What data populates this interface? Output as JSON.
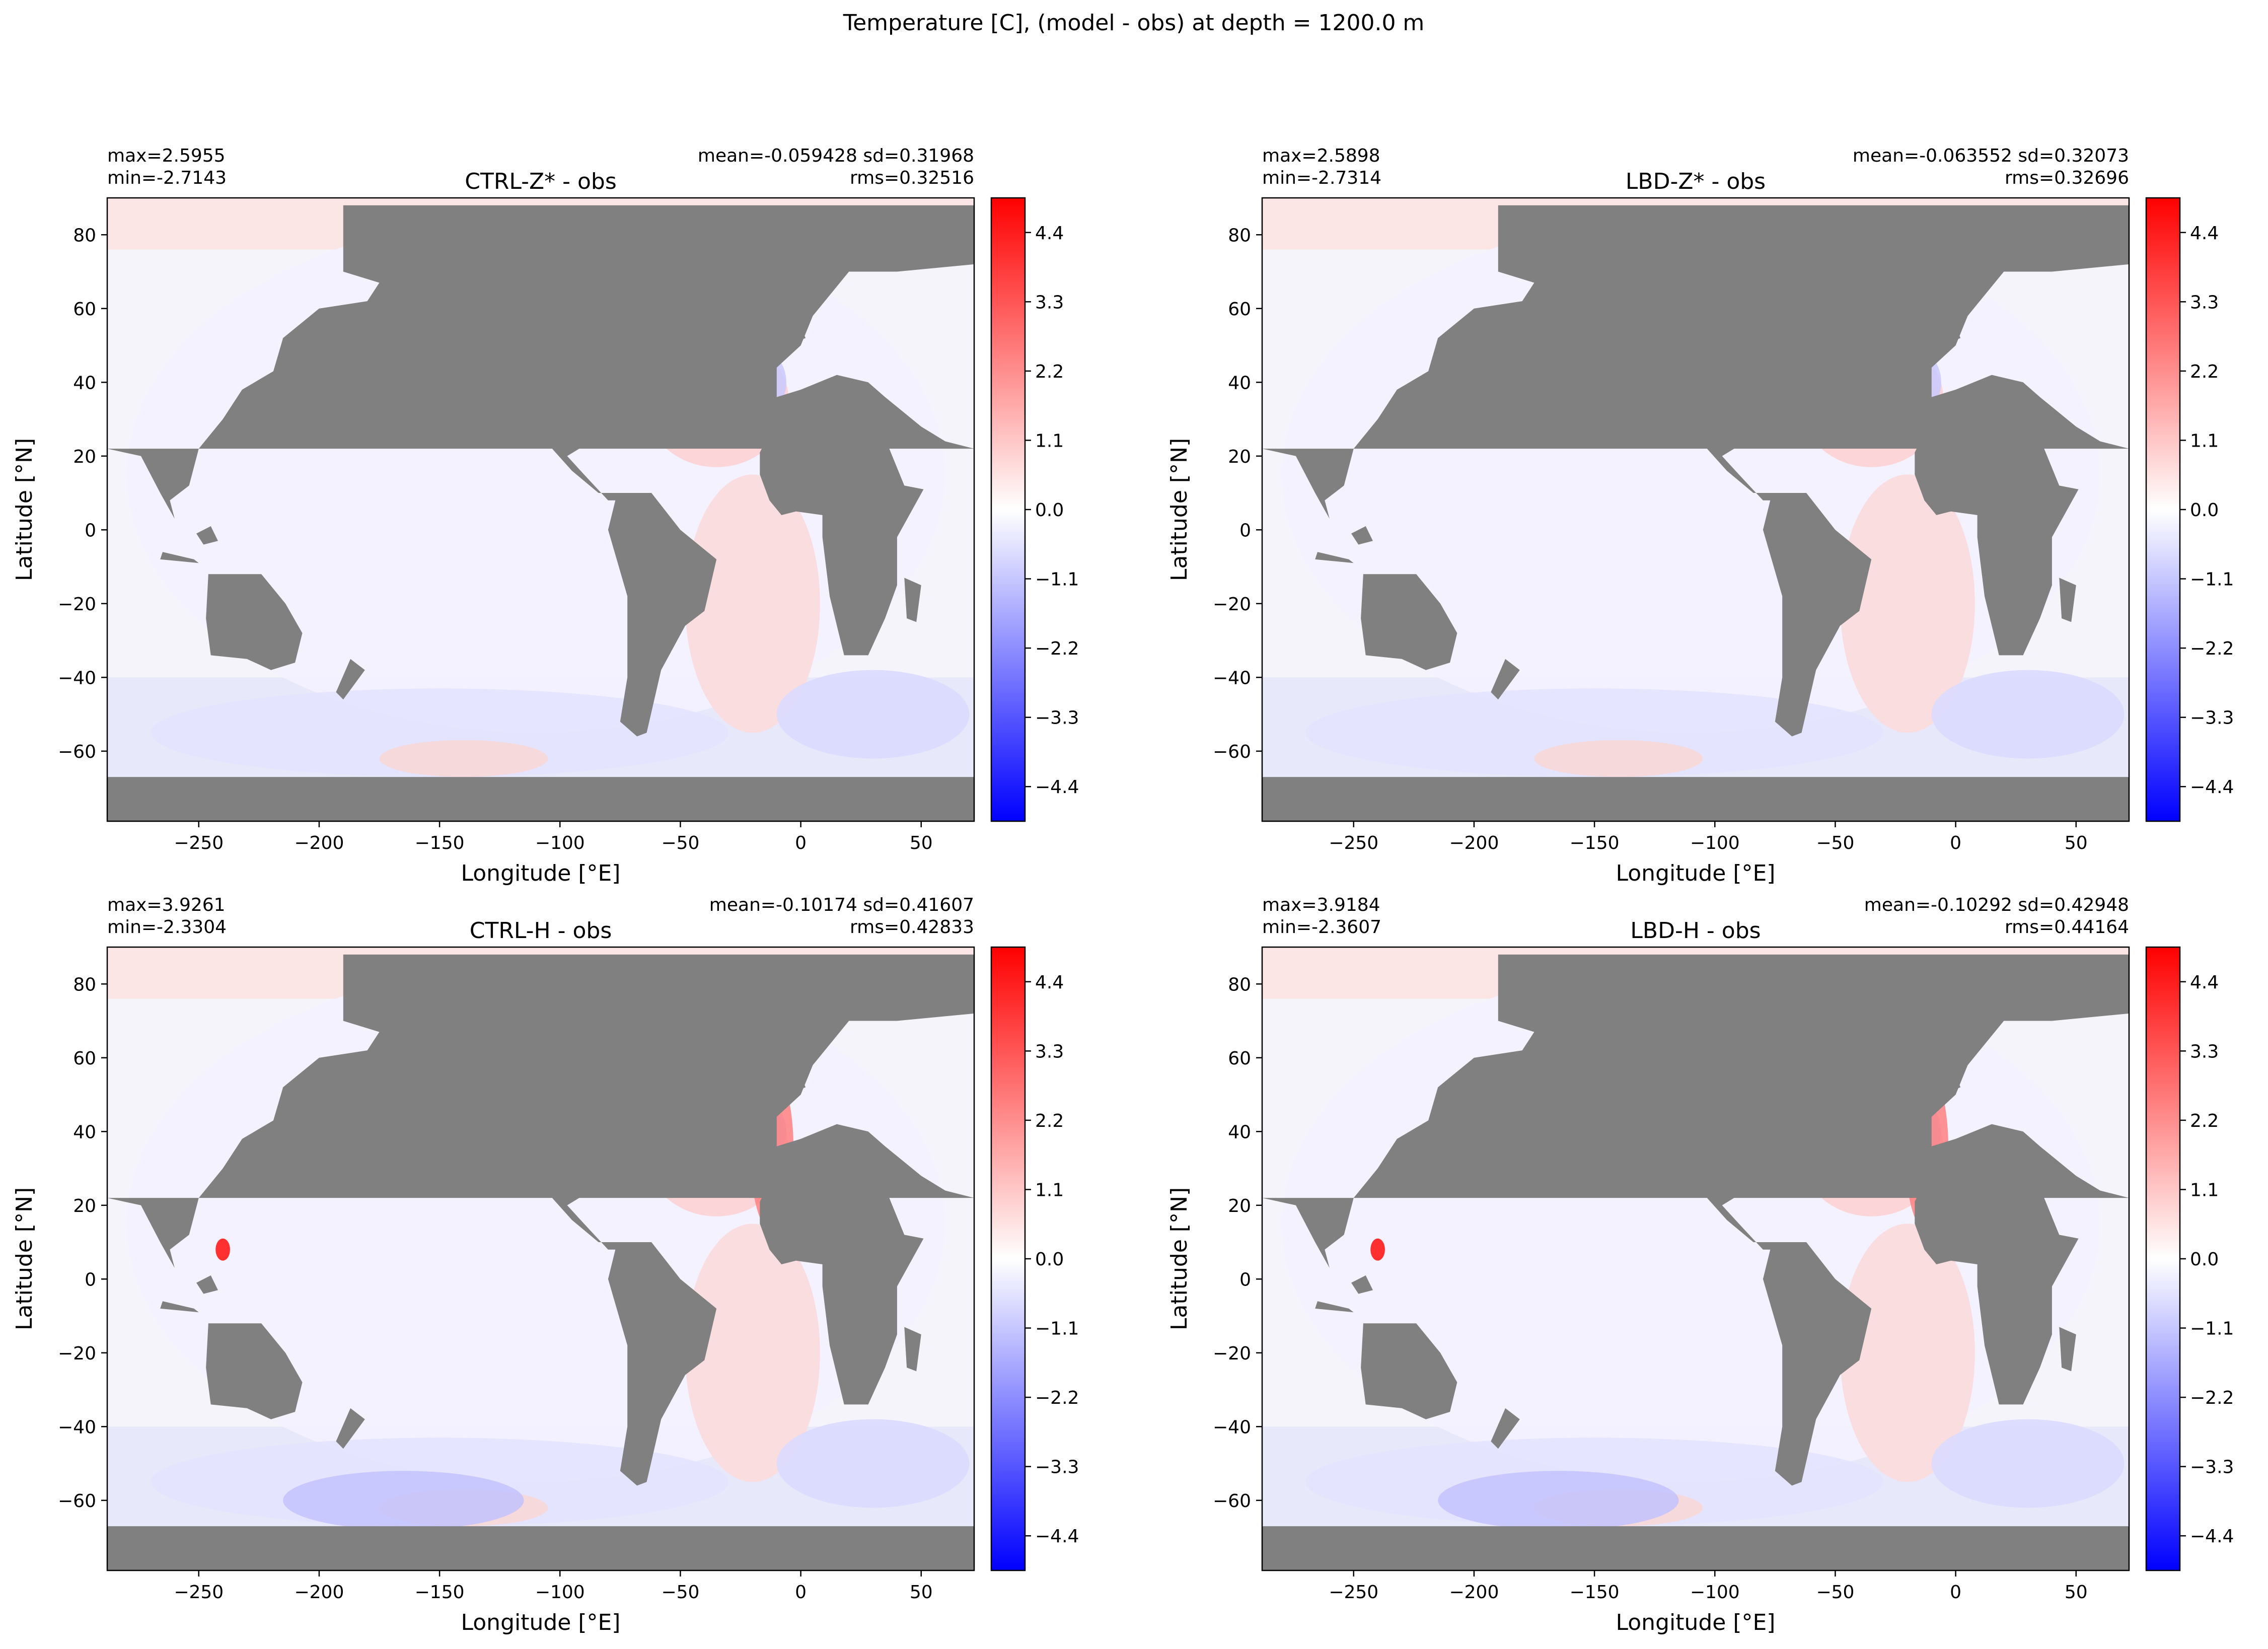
{
  "figure": {
    "suptitle": "Temperature [C], (model - obs) at depth = 1200.0 m",
    "land_color": "#808080",
    "cmap": {
      "neg": "#0000ff",
      "mid": "#ffffff",
      "pos": "#ff0000"
    }
  },
  "chart_data": [
    {
      "type": "heatmap",
      "title": "CTRL-Z* - obs",
      "stats_left": [
        "max=2.5955",
        "min=-2.7143"
      ],
      "stats_right": [
        "mean=-0.059428 sd=0.31968",
        "rms=0.32516"
      ],
      "xlabel": "Longitude [°E]",
      "ylabel": "Latitude [°N]",
      "xlim": [
        -288,
        72
      ],
      "ylim": [
        -79,
        90
      ],
      "xticks": [
        -250,
        -200,
        -150,
        -100,
        -50,
        0,
        50
      ],
      "xtick_labels": [
        "−250",
        "−200",
        "−150",
        "−100",
        "−50",
        "0",
        "50"
      ],
      "yticks": [
        80,
        60,
        40,
        20,
        0,
        -20,
        -40,
        -60
      ],
      "ytick_labels": [
        "80",
        "60",
        "40",
        "20",
        "0",
        "−20",
        "−40",
        "−60"
      ],
      "colorbar": {
        "range": [
          -4.95,
          4.95
        ],
        "ticks": [
          4.4,
          3.3,
          2.2,
          1.1,
          0.0,
          -1.1,
          -2.2,
          -3.3,
          -4.4
        ],
        "tick_labels": [
          "4.4",
          "3.3",
          "2.2",
          "1.1",
          "0.0",
          "−1.1",
          "−2.2",
          "−3.3",
          "−4.4"
        ]
      }
    },
    {
      "type": "heatmap",
      "title": "LBD-Z* - obs",
      "stats_left": [
        "max=2.5898",
        "min=-2.7314"
      ],
      "stats_right": [
        "mean=-0.063552 sd=0.32073",
        "rms=0.32696"
      ],
      "xlabel": "Longitude [°E]",
      "ylabel": "Latitude [°N]",
      "xlim": [
        -288,
        72
      ],
      "ylim": [
        -79,
        90
      ],
      "xticks": [
        -250,
        -200,
        -150,
        -100,
        -50,
        0,
        50
      ],
      "xtick_labels": [
        "−250",
        "−200",
        "−150",
        "−100",
        "−50",
        "0",
        "50"
      ],
      "yticks": [
        80,
        60,
        40,
        20,
        0,
        -20,
        -40,
        -60
      ],
      "ytick_labels": [
        "80",
        "60",
        "40",
        "20",
        "0",
        "−20",
        "−40",
        "−60"
      ],
      "colorbar": {
        "range": [
          -4.95,
          4.95
        ],
        "ticks": [
          4.4,
          3.3,
          2.2,
          1.1,
          0.0,
          -1.1,
          -2.2,
          -3.3,
          -4.4
        ],
        "tick_labels": [
          "4.4",
          "3.3",
          "2.2",
          "1.1",
          "0.0",
          "−1.1",
          "−2.2",
          "−3.3",
          "−4.4"
        ]
      }
    },
    {
      "type": "heatmap",
      "title": "CTRL-H - obs",
      "stats_left": [
        "max=3.9261",
        "min=-2.3304"
      ],
      "stats_right": [
        "mean=-0.10174 sd=0.41607",
        "rms=0.42833"
      ],
      "xlabel": "Longitude [°E]",
      "ylabel": "Latitude [°N]",
      "xlim": [
        -288,
        72
      ],
      "ylim": [
        -79,
        90
      ],
      "xticks": [
        -250,
        -200,
        -150,
        -100,
        -50,
        0,
        50
      ],
      "xtick_labels": [
        "−250",
        "−200",
        "−150",
        "−100",
        "−50",
        "0",
        "50"
      ],
      "yticks": [
        80,
        60,
        40,
        20,
        0,
        -20,
        -40,
        -60
      ],
      "ytick_labels": [
        "80",
        "60",
        "40",
        "20",
        "0",
        "−20",
        "−40",
        "−60"
      ],
      "colorbar": {
        "range": [
          -4.95,
          4.95
        ],
        "ticks": [
          4.4,
          3.3,
          2.2,
          1.1,
          0.0,
          -1.1,
          -2.2,
          -3.3,
          -4.4
        ],
        "tick_labels": [
          "4.4",
          "3.3",
          "2.2",
          "1.1",
          "0.0",
          "−1.1",
          "−2.2",
          "−3.3",
          "−4.4"
        ]
      }
    },
    {
      "type": "heatmap",
      "title": "LBD-H - obs",
      "stats_left": [
        "max=3.9184",
        "min=-2.3607"
      ],
      "stats_right": [
        "mean=-0.10292 sd=0.42948",
        "rms=0.44164"
      ],
      "xlabel": "Longitude [°E]",
      "ylabel": "Latitude [°N]",
      "xlim": [
        -288,
        72
      ],
      "ylim": [
        -79,
        90
      ],
      "xticks": [
        -250,
        -200,
        -150,
        -100,
        -50,
        0,
        50
      ],
      "xtick_labels": [
        "−250",
        "−200",
        "−150",
        "−100",
        "−50",
        "0",
        "50"
      ],
      "yticks": [
        80,
        60,
        40,
        20,
        0,
        -20,
        -40,
        -60
      ],
      "ytick_labels": [
        "80",
        "60",
        "40",
        "20",
        "0",
        "−20",
        "−40",
        "−60"
      ],
      "colorbar": {
        "range": [
          -4.95,
          4.95
        ],
        "ticks": [
          4.4,
          3.3,
          2.2,
          1.1,
          0.0,
          -1.1,
          -2.2,
          -3.3,
          -4.4
        ],
        "tick_labels": [
          "4.4",
          "3.3",
          "2.2",
          "1.1",
          "0.0",
          "−1.1",
          "−2.2",
          "−3.3",
          "−4.4"
        ]
      }
    }
  ]
}
